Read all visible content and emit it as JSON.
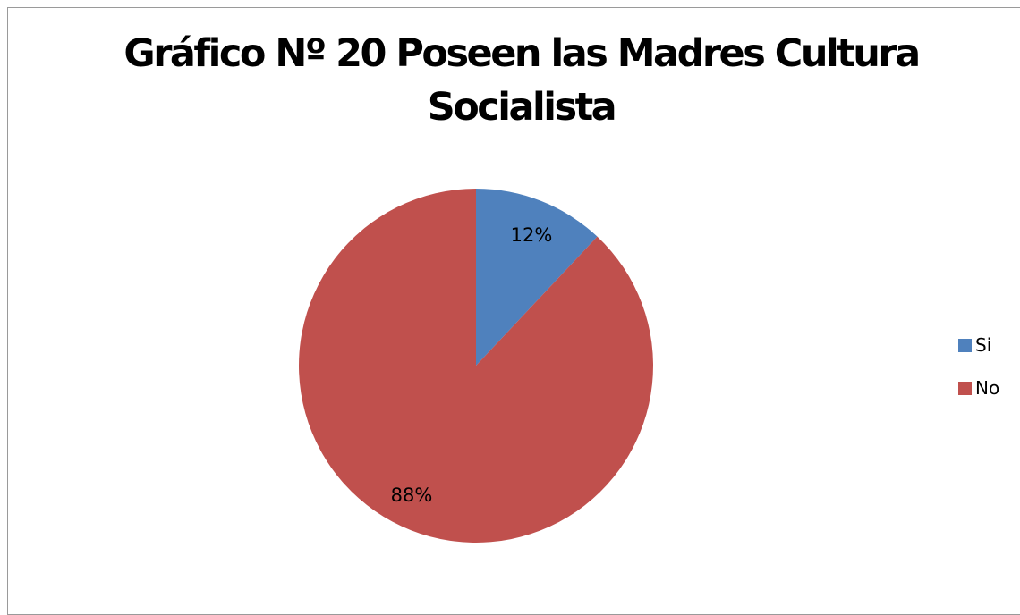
{
  "chart_data": {
    "type": "pie",
    "title": "Gráfico Nº 20 Poseen las Madres Cultura Socialista",
    "title_lines": [
      "Gráfico Nº 20 Poseen las Madres Cultura",
      "Socialista"
    ],
    "categories": [
      "Si",
      "No"
    ],
    "values": [
      12,
      88
    ],
    "data_labels": [
      "12%",
      "88%"
    ],
    "colors": [
      "#4F81BD",
      "#C0504D"
    ],
    "legend_position": "right"
  }
}
